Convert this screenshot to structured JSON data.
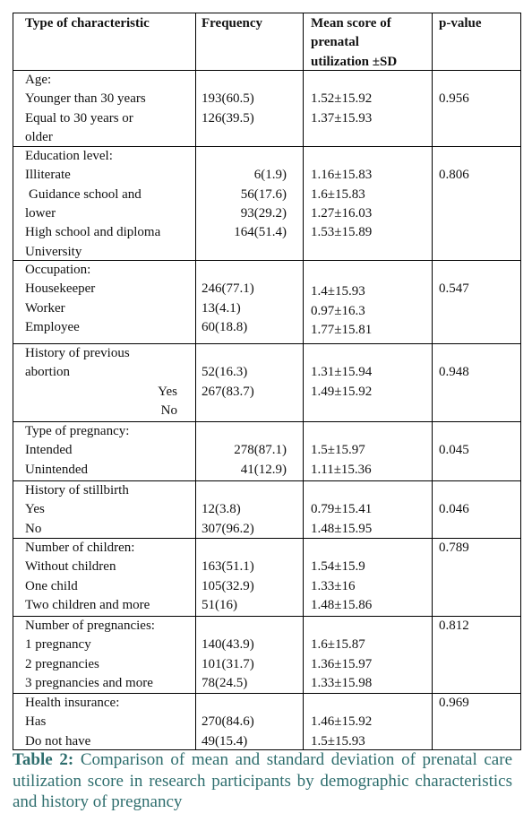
{
  "header": [
    [
      "Type of characteristic"
    ],
    [
      "Frequency"
    ],
    [
      "Mean score of",
      "prenatal",
      "utilization ±SD"
    ],
    [
      "p-value"
    ]
  ],
  "rows": [
    {
      "characteristic": [
        "Age:",
        "Younger than 30 years",
        "Equal to 30 years or",
        "older"
      ],
      "frequency": [
        "193(60.5)",
        "126(39.5)"
      ],
      "mean": [
        "1.52±15.92",
        "1.37±15.93"
      ],
      "p_value": "0.956"
    },
    {
      "characteristic": [
        "Education level:",
        "Illiterate",
        "Guidance school and",
        "lower",
        "High school and diploma",
        "University"
      ],
      "frequency": [
        "6(1.9)",
        "56(17.6)",
        "93(29.2)",
        "164(51.4)"
      ],
      "mean": [
        "1.16±15.83",
        "1.6±15.83",
        "1.27±16.03",
        "1.53±15.89"
      ],
      "p_value": "0.806"
    },
    {
      "characteristic": [
        "Occupation:",
        "Housekeeper",
        "Worker",
        "Employee"
      ],
      "frequency": [
        "246(77.1)",
        "13(4.1)",
        "60(18.8)"
      ],
      "mean": [
        "1.4±15.93",
        "0.97±16.3",
        "1.77±15.81"
      ],
      "p_value": "0.547"
    },
    {
      "characteristic": [
        "History of previous",
        "abortion",
        "Yes",
        "No"
      ],
      "frequency": [
        "52(16.3)",
        "267(83.7)"
      ],
      "mean": [
        "1.31±15.94",
        "1.49±15.92"
      ],
      "p_value": "0.948"
    },
    {
      "characteristic": [
        "Type of pregnancy:",
        "Intended",
        "Unintended"
      ],
      "frequency": [
        "278(87.1)",
        "41(12.9)"
      ],
      "mean": [
        "1.5±15.97",
        "1.11±15.36"
      ],
      "p_value": "0.045"
    },
    {
      "characteristic": [
        "History of stillbirth",
        "Yes",
        "No"
      ],
      "frequency": [
        "12(3.8)",
        "307(96.2)"
      ],
      "mean": [
        "0.79±15.41",
        "1.48±15.95"
      ],
      "p_value": "0.046"
    },
    {
      "characteristic": [
        "Number of children:",
        "Without children",
        "One child",
        "Two children and more"
      ],
      "frequency": [
        "163(51.1)",
        "105(32.9)",
        "51(16)"
      ],
      "mean": [
        "1.54±15.9",
        "1.33±16",
        "1.48±15.86"
      ],
      "p_value": "0.789"
    },
    {
      "characteristic": [
        "Number of pregnancies:",
        "1 pregnancy",
        "2 pregnancies",
        "3 pregnancies and more"
      ],
      "frequency": [
        "140(43.9)",
        "101(31.7)",
        "78(24.5)"
      ],
      "mean": [
        "1.6±15.87",
        "1.36±15.97",
        "1.33±15.98"
      ],
      "p_value": "0.812"
    },
    {
      "characteristic": [
        "Health insurance:",
        "Has",
        "Do not have"
      ],
      "frequency": [
        "270(84.6)",
        "49(15.4)"
      ],
      "mean": [
        "1.46±15.92",
        "1.5±15.93"
      ],
      "p_value": "0.969"
    }
  ],
  "caption": {
    "label": "Table 2:",
    "text": "Comparison of mean and standard deviation of prenatal care utilization score in research participants by demographic characteristics and history of pregnancy"
  }
}
